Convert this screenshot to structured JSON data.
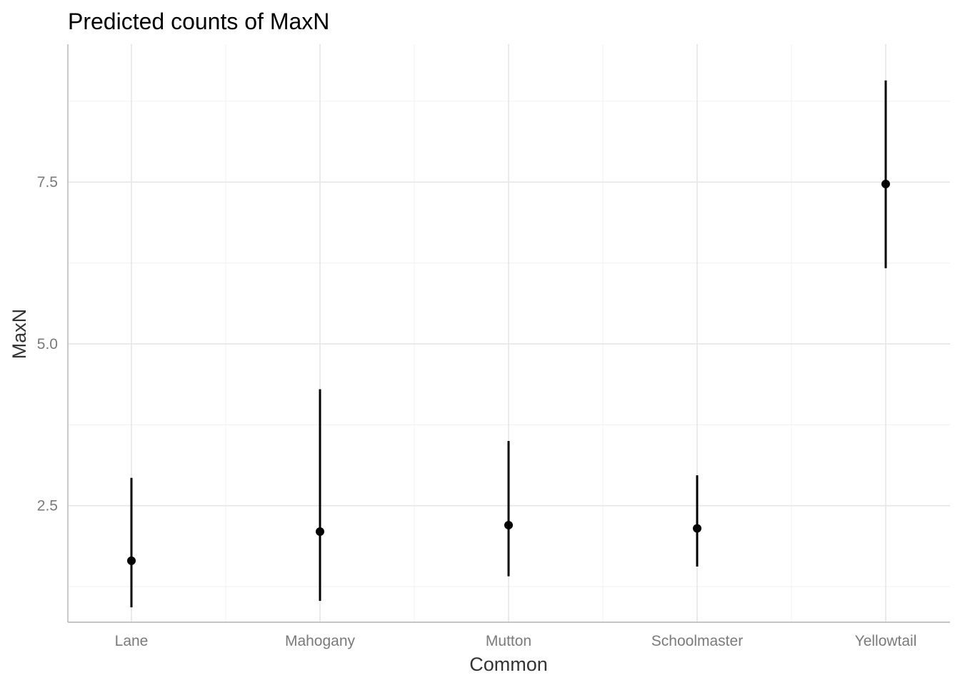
{
  "chart_data": {
    "type": "scatter",
    "title": "Predicted counts of MaxN",
    "xlabel": "Common",
    "ylabel": "MaxN",
    "categories": [
      "Lane",
      "Mahogany",
      "Mutton",
      "Schoolmaster",
      "Yellowtail"
    ],
    "series": [
      {
        "values": [
          1.65,
          2.1,
          2.2,
          2.15,
          7.47
        ],
        "lower": [
          0.93,
          1.03,
          1.41,
          1.56,
          6.17
        ],
        "upper": [
          2.93,
          4.3,
          3.5,
          2.97,
          9.07
        ]
      }
    ],
    "ylim": [
      0.7,
      9.63
    ],
    "yticks": [
      2.5,
      5.0,
      7.5
    ],
    "ytick_labels": [
      "2.5",
      "5.0",
      "7.5"
    ],
    "grid": true,
    "legend": "none",
    "colors": {
      "point": "#000000",
      "grid": "#e6e6e6",
      "axis_text": "#7a7a7a",
      "axis_title": "#333333"
    }
  }
}
